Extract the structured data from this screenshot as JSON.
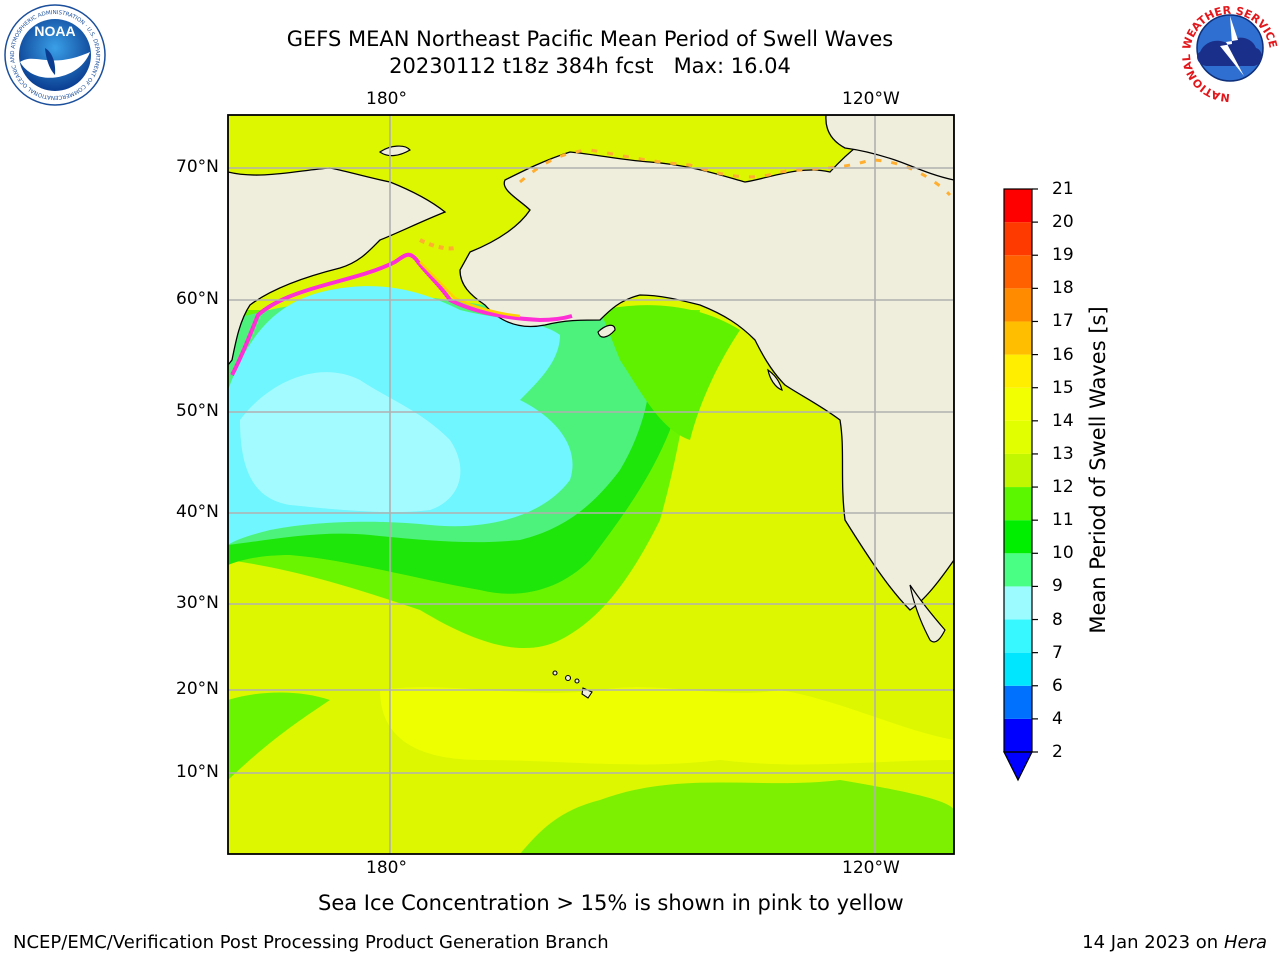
{
  "header": {
    "title_line1": "GEFS MEAN Northeast Pacific Mean Period of Swell Waves",
    "title_line2": "20230112 t18z 384h fcst   Max: 16.04"
  },
  "map": {
    "lon_ticks_top": [
      "180°",
      "120°W"
    ],
    "lon_ticks_bottom": [
      "180°",
      "120°W"
    ],
    "lat_ticks": [
      "70°N",
      "60°N",
      "50°N",
      "40°N",
      "30°N",
      "20°N",
      "10°N"
    ],
    "colors": {
      "land": "#efeedc",
      "grid": "#b0b0b0",
      "coast": "#000000"
    }
  },
  "colorbar": {
    "title": "Mean Period of Swell Waves [s]",
    "levels": [
      "2",
      "4",
      "6",
      "7",
      "8",
      "9",
      "10",
      "11",
      "12",
      "13",
      "14",
      "15",
      "16",
      "17",
      "18",
      "19",
      "20",
      "21"
    ],
    "colors": [
      "#0000ff",
      "#0070ff",
      "#00e6ff",
      "#37f8ff",
      "#9cfbff",
      "#49ff84",
      "#00ef00",
      "#5af700",
      "#c1f700",
      "#e2ff00",
      "#f2ff00",
      "#ffee00",
      "#ffbe00",
      "#ff8c00",
      "#ff6000",
      "#ff3a00",
      "#ff0000"
    ]
  },
  "note": "Sea Ice Concentration > 15% is shown in pink to yellow",
  "footer": {
    "left": "NCEP/EMC/Verification Post Processing Product Generation Branch",
    "date": "14 Jan 2023 on",
    "machine": "Hera"
  },
  "logos": {
    "noaa_text": "NOAA",
    "noaa_ring": "NATIONAL OCEANIC AND ATMOSPHERIC ADMINISTRATION · U.S. DEPARTMENT OF COMMERCE",
    "nws_ring": "NATIONAL WEATHER SERVICE"
  }
}
